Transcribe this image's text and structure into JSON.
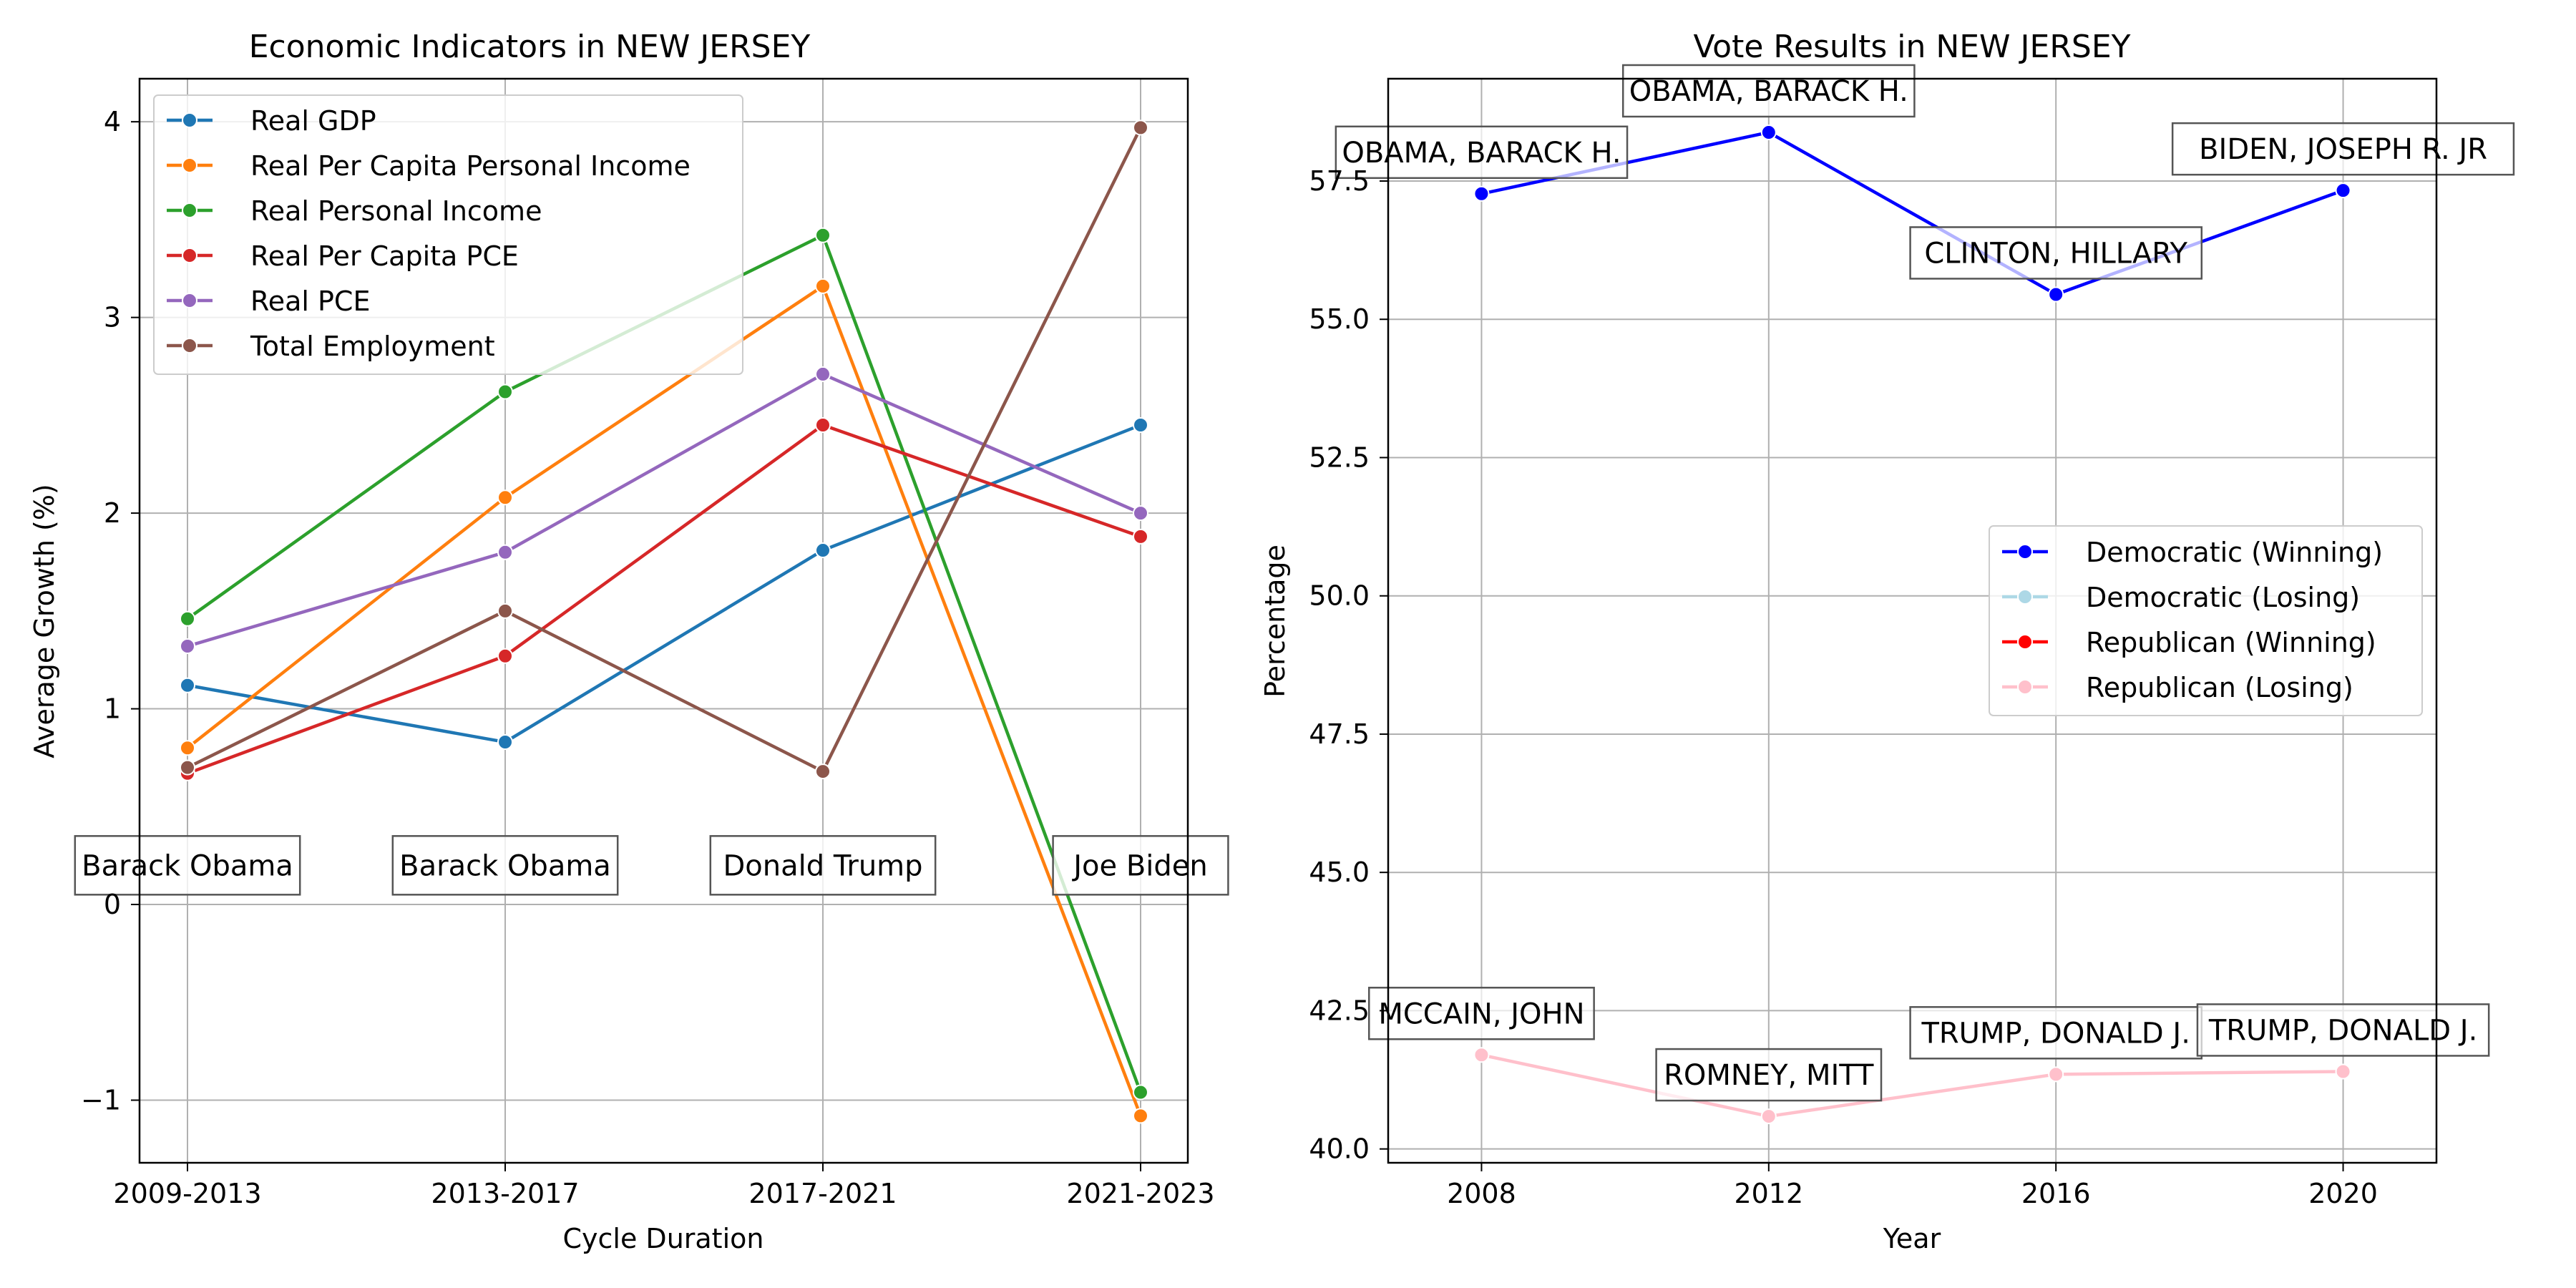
{
  "chart_data": [
    {
      "type": "line",
      "title": "Economic Indicators in NEW JERSEY",
      "xlabel": "Cycle Duration",
      "ylabel": "Average Growth (%)",
      "categories": [
        "2009-2013",
        "2013-2017",
        "2017-2021",
        "2021-2023"
      ],
      "ylim": [
        -1.32,
        4.22
      ],
      "yticks": [
        -1,
        0,
        1,
        2,
        3,
        4
      ],
      "ytick_labels": [
        "−1",
        "0",
        "1",
        "2",
        "3",
        "4"
      ],
      "grid": true,
      "legend_position": "upper-left",
      "series": [
        {
          "name": "Real GDP",
          "color": "#1f77b4",
          "values": [
            1.12,
            0.83,
            1.81,
            2.45
          ]
        },
        {
          "name": "Real Per Capita Personal Income",
          "color": "#ff7f0e",
          "values": [
            0.8,
            2.08,
            3.16,
            -1.08
          ]
        },
        {
          "name": "Real Personal Income",
          "color": "#2ca02c",
          "values": [
            1.46,
            2.62,
            3.42,
            -0.96
          ]
        },
        {
          "name": "Real Per Capita PCE",
          "color": "#d62728",
          "values": [
            0.67,
            1.27,
            2.45,
            1.88
          ]
        },
        {
          "name": "Real PCE",
          "color": "#9467bd",
          "values": [
            1.32,
            1.8,
            2.71,
            2.0
          ]
        },
        {
          "name": "Total Employment",
          "color": "#8c564b",
          "values": [
            0.7,
            1.5,
            0.68,
            3.97
          ]
        }
      ],
      "annotations": [
        {
          "category": "2009-2013",
          "text": "Barack Obama"
        },
        {
          "category": "2013-2017",
          "text": "Barack Obama"
        },
        {
          "category": "2017-2021",
          "text": "Donald Trump"
        },
        {
          "category": "2021-2023",
          "text": "Joe Biden"
        }
      ],
      "annotation_y": 0.2
    },
    {
      "type": "line",
      "title": "Vote Results in NEW JERSEY",
      "xlabel": "Year",
      "ylabel": "Percentage",
      "x": [
        2008,
        2012,
        2016,
        2020
      ],
      "xtick_labels": [
        "2008",
        "2012",
        "2016",
        "2020"
      ],
      "xlim": [
        2006.7,
        2021.3
      ],
      "ylim": [
        39.75,
        59.35
      ],
      "yticks": [
        40.0,
        42.5,
        45.0,
        47.5,
        50.0,
        52.5,
        55.0,
        57.5
      ],
      "ytick_labels": [
        "40.0",
        "42.5",
        "45.0",
        "47.5",
        "50.0",
        "52.5",
        "55.0",
        "57.5"
      ],
      "grid": true,
      "legend_position": "center-right",
      "legend": [
        {
          "name": "Democratic (Winning)",
          "color": "#0000ff"
        },
        {
          "name": "Democratic (Losing)",
          "color": "#add8e6"
        },
        {
          "name": "Republican (Winning)",
          "color": "#ff0000"
        },
        {
          "name": "Republican (Losing)",
          "color": "#ffc0cb"
        }
      ],
      "series": [
        {
          "name": "Democratic (Winning)",
          "color": "#0000ff",
          "values": [
            57.27,
            58.38,
            55.45,
            57.33
          ],
          "labels": [
            "OBAMA, BARACK H.",
            "OBAMA, BARACK H.",
            "CLINTON, HILLARY",
            "BIDEN, JOSEPH R. JR"
          ]
        },
        {
          "name": "Republican (Losing)",
          "color": "#ffc0cb",
          "values": [
            41.7,
            40.59,
            41.35,
            41.4
          ],
          "labels": [
            "MCCAIN, JOHN",
            "ROMNEY, MITT",
            "TRUMP, DONALD J.",
            "TRUMP, DONALD J."
          ]
        }
      ]
    }
  ]
}
